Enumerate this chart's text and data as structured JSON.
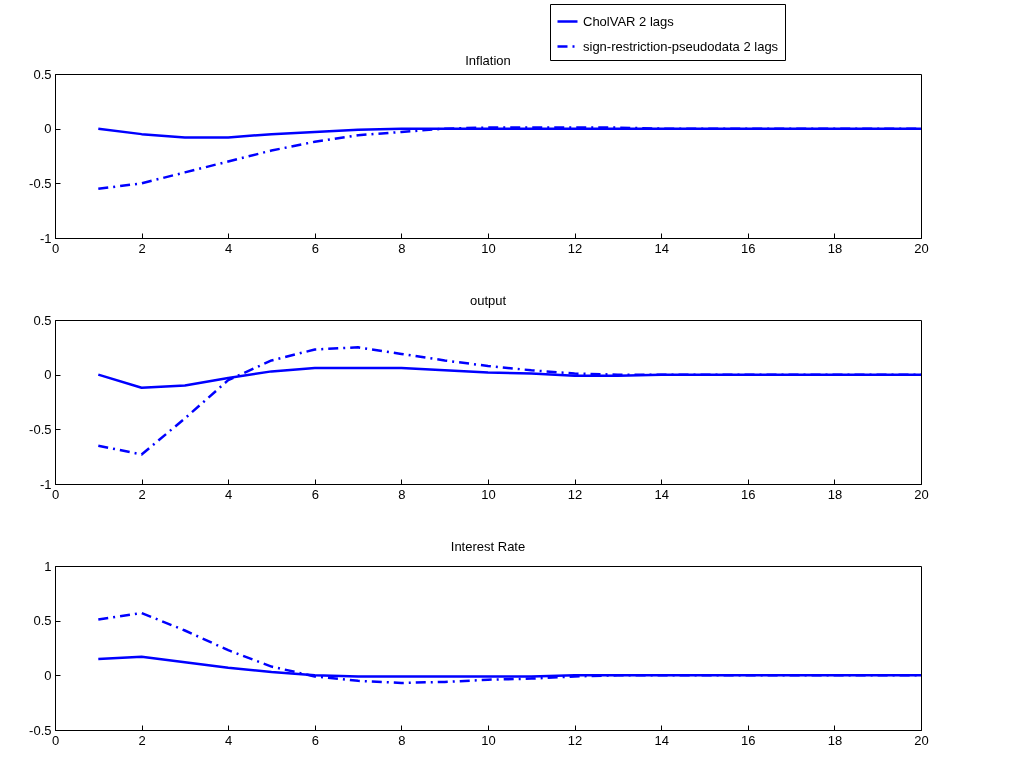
{
  "chart_data": [
    {
      "type": "line",
      "title": "Inflation",
      "x": [
        1,
        2,
        3,
        4,
        5,
        6,
        7,
        8,
        9,
        10,
        11,
        12,
        13,
        14,
        15,
        16,
        17,
        18,
        19,
        20
      ],
      "xlim": [
        0,
        20
      ],
      "xticks": [
        0,
        2,
        4,
        6,
        8,
        10,
        12,
        14,
        16,
        18,
        20
      ],
      "ylim": [
        -1,
        0.5
      ],
      "yticks": [
        -1,
        -0.5,
        0,
        0.5
      ],
      "grid": false,
      "legend": "top right",
      "series": [
        {
          "name": "CholVAR 2 lags",
          "color": "#0000ff",
          "line_style": "solid",
          "values": [
            0,
            -0.05,
            -0.08,
            -0.08,
            -0.05,
            -0.03,
            -0.01,
            0,
            0,
            0,
            0,
            0,
            0,
            0,
            0,
            0,
            0,
            0,
            0,
            0
          ]
        },
        {
          "name": "sign-restriction-pseudodata 2 lags",
          "color": "#0000ff",
          "line_style": "dashdot",
          "values": [
            -0.55,
            -0.5,
            -0.4,
            -0.3,
            -0.2,
            -0.12,
            -0.06,
            -0.03,
            0,
            0.01,
            0.01,
            0.01,
            0.01,
            0,
            0,
            0,
            0,
            0,
            0,
            0
          ]
        }
      ]
    },
    {
      "type": "line",
      "title": "output",
      "x": [
        1,
        2,
        3,
        4,
        5,
        6,
        7,
        8,
        9,
        10,
        11,
        12,
        13,
        14,
        15,
        16,
        17,
        18,
        19,
        20
      ],
      "xlim": [
        0,
        20
      ],
      "xticks": [
        0,
        2,
        4,
        6,
        8,
        10,
        12,
        14,
        16,
        18,
        20
      ],
      "ylim": [
        -1,
        0.5
      ],
      "yticks": [
        -1,
        -0.5,
        0,
        0.5
      ],
      "grid": false,
      "series": [
        {
          "color": "#0000ff",
          "line_style": "solid",
          "values": [
            0,
            -0.12,
            -0.1,
            -0.03,
            0.03,
            0.06,
            0.06,
            0.06,
            0.04,
            0.02,
            0.01,
            -0.01,
            -0.01,
            0,
            0,
            0,
            0,
            0,
            0,
            0
          ]
        },
        {
          "color": "#0000ff",
          "line_style": "dashdot",
          "values": [
            -0.65,
            -0.73,
            -0.4,
            -0.05,
            0.13,
            0.23,
            0.25,
            0.19,
            0.13,
            0.08,
            0.04,
            0.01,
            0,
            0,
            0,
            0,
            0,
            0,
            0,
            0
          ]
        }
      ]
    },
    {
      "type": "line",
      "title": "Interest Rate",
      "x": [
        1,
        2,
        3,
        4,
        5,
        6,
        7,
        8,
        9,
        10,
        11,
        12,
        13,
        14,
        15,
        16,
        17,
        18,
        19,
        20
      ],
      "xlim": [
        0,
        20
      ],
      "xticks": [
        0,
        2,
        4,
        6,
        8,
        10,
        12,
        14,
        16,
        18,
        20
      ],
      "ylim": [
        -0.5,
        1
      ],
      "yticks": [
        -0.5,
        0,
        0.5,
        1
      ],
      "grid": false,
      "series": [
        {
          "color": "#0000ff",
          "line_style": "solid",
          "values": [
            0.15,
            0.17,
            0.12,
            0.07,
            0.03,
            0,
            -0.01,
            -0.01,
            -0.01,
            -0.01,
            -0.01,
            0,
            0,
            0,
            0,
            0,
            0,
            0,
            0,
            0
          ]
        },
        {
          "color": "#0000ff",
          "line_style": "dashdot",
          "values": [
            0.51,
            0.57,
            0.41,
            0.23,
            0.08,
            -0.01,
            -0.05,
            -0.07,
            -0.06,
            -0.04,
            -0.03,
            -0.01,
            0,
            0,
            0,
            0,
            0,
            0,
            0,
            0
          ]
        }
      ]
    }
  ]
}
